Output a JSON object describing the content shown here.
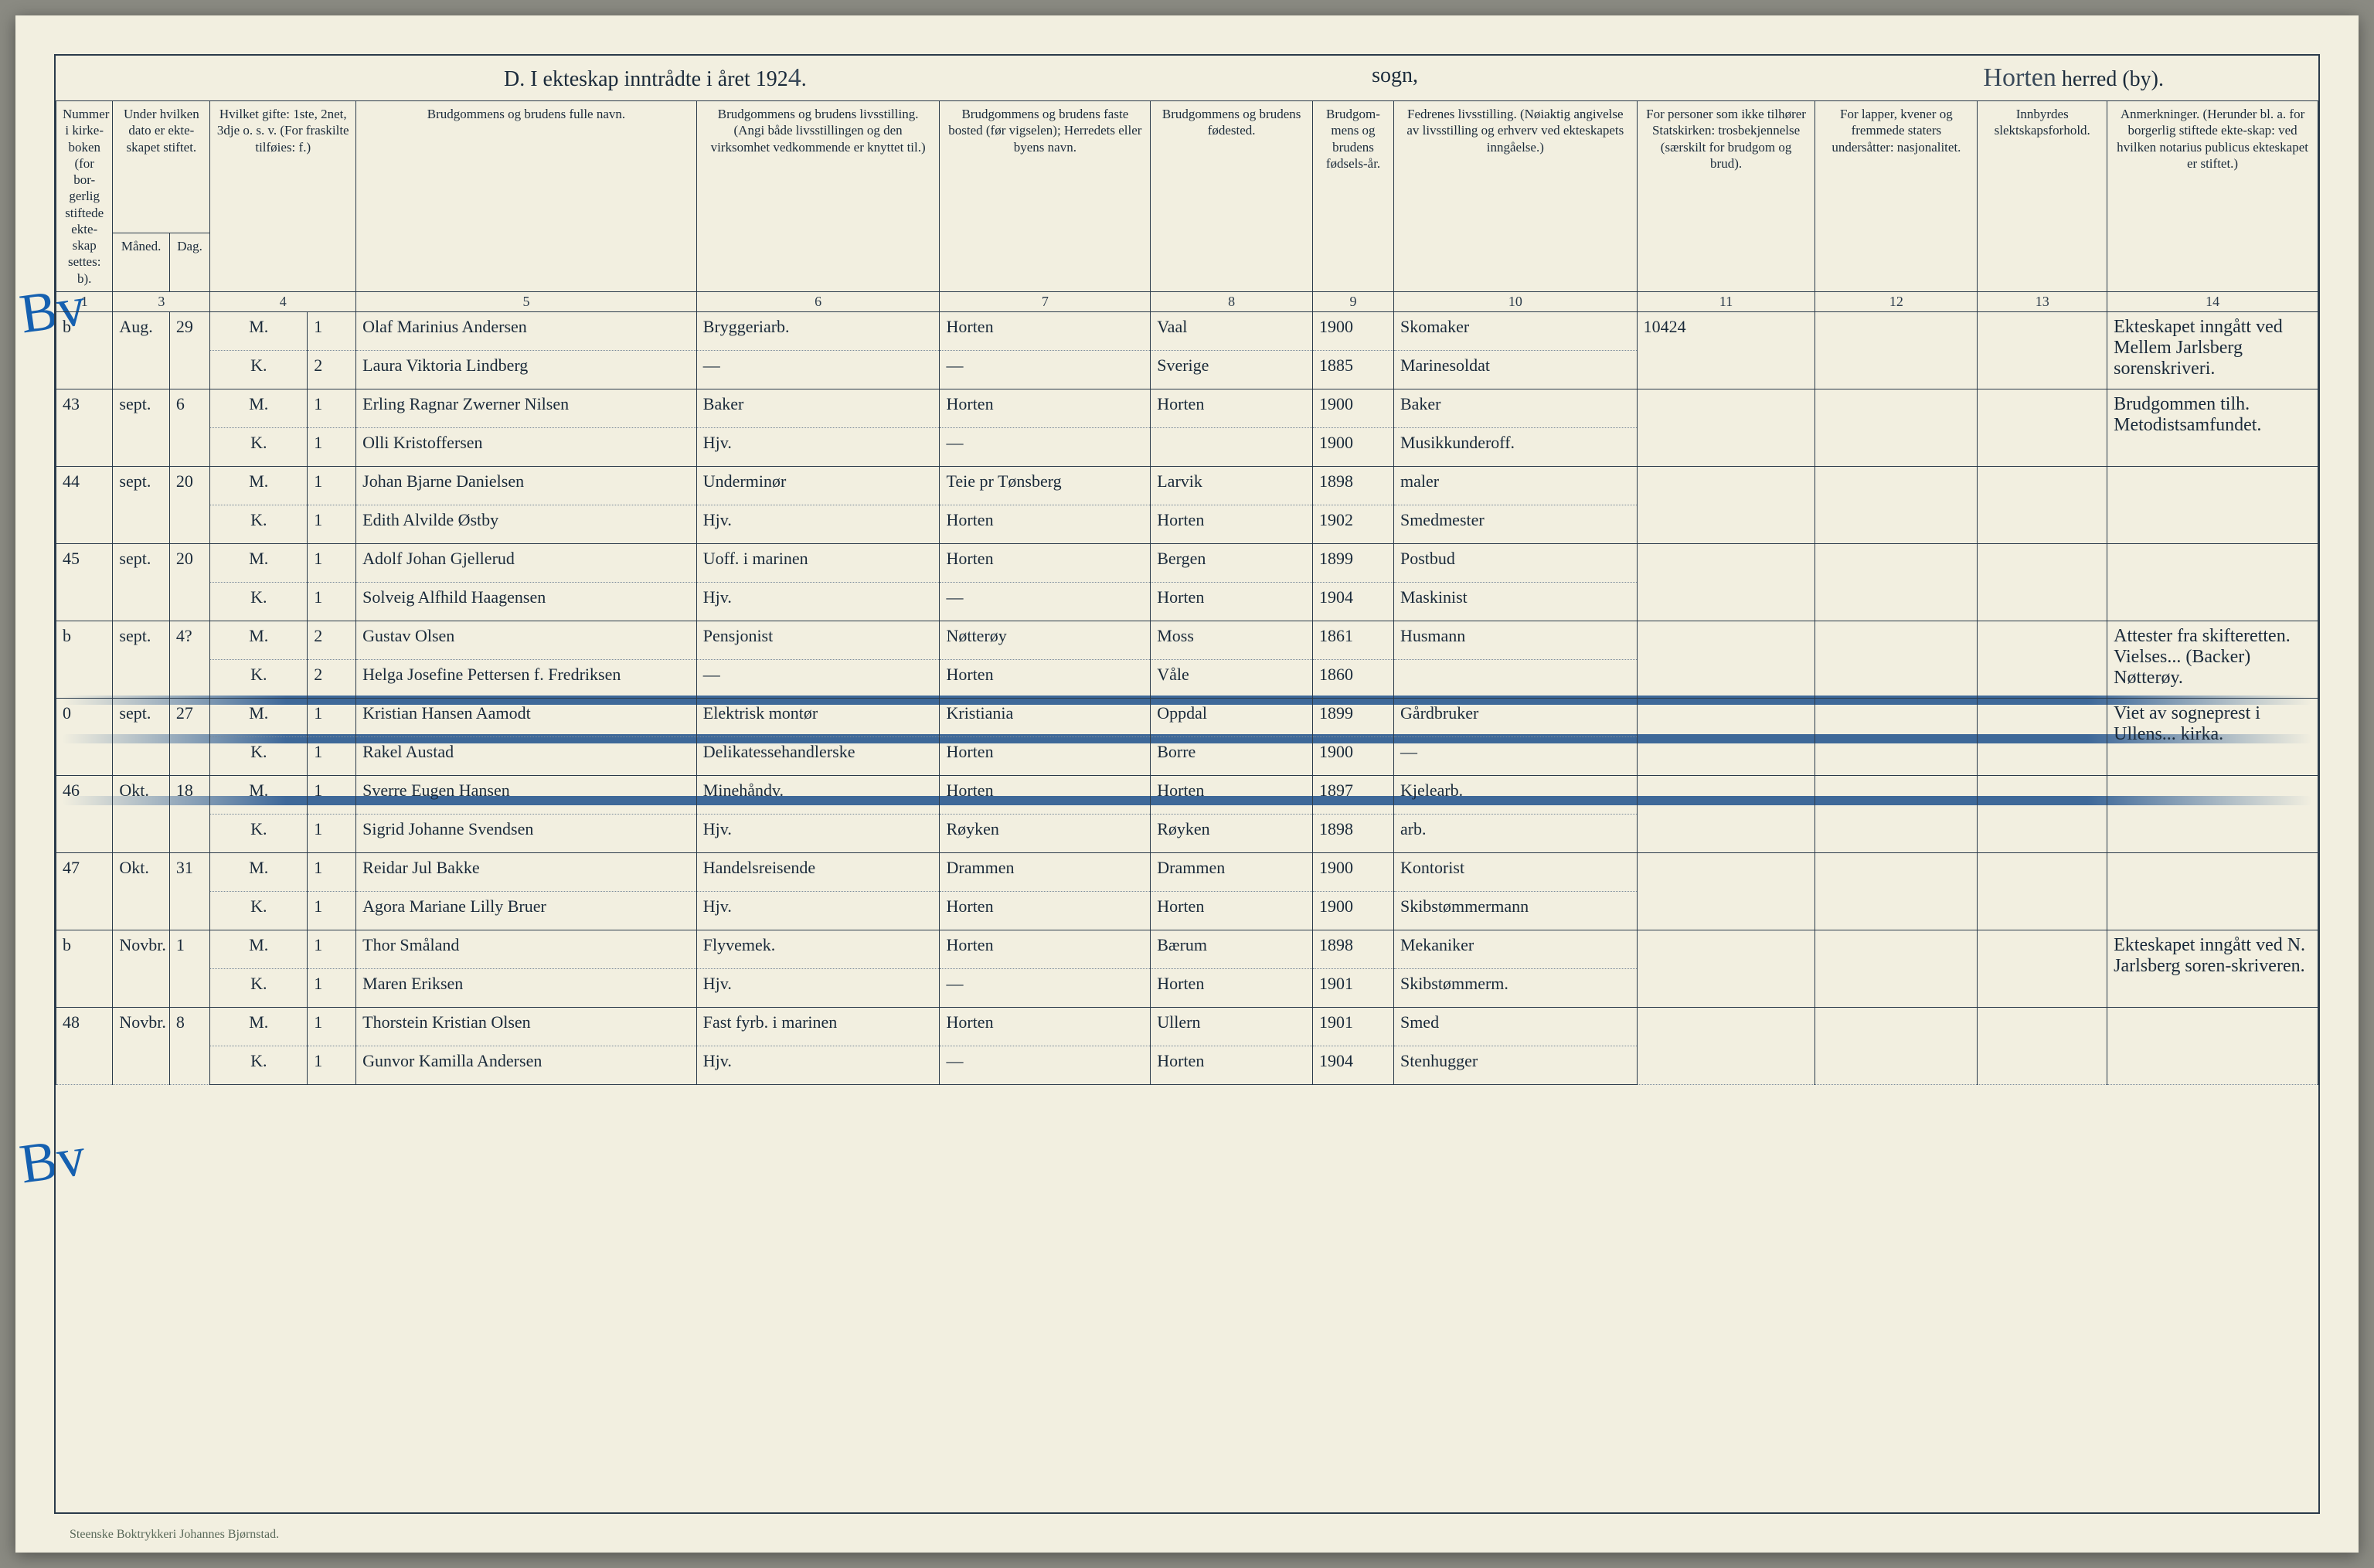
{
  "title": {
    "left_print": "D.  I ekteskap inntrådte i året 192",
    "year_hand": "4",
    "mid_print": "sogn,",
    "right_hand": "Horten",
    "right_print": "herred (by)."
  },
  "headers": {
    "c1": "Nummer i kirke-boken (for bor-gerlig stiftede ekte-skap settes: b).",
    "c2": "Under hvilken dato er ekte-skapet stiftet.",
    "c2a": "Måned.",
    "c2b": "Dag.",
    "c3": "Hvilket gifte: 1ste, 2net, 3dje o. s. v. (For fraskilte tilføies: f.)",
    "c4": "Brudgommens og brudens fulle navn.",
    "c5": "Brudgommens og brudens livsstilling. (Angi både livsstillingen og den virksomhet vedkommende er knyttet til.)",
    "c6": "Brudgommens og brudens faste bosted (før vigselen); Herredets eller byens navn.",
    "c7": "Brudgommens og brudens fødested.",
    "c8": "Brudgom-mens og brudens fødsels-år.",
    "c9": "Fedrenes livsstilling. (Nøiaktig angivelse av livsstilling og erhverv ved ekteskapets inngåelse.)",
    "c10": "For personer som ikke tilhører Statskirken: trosbekjennelse (særskilt for brudgom og brud).",
    "c11": "For lapper, kvener og fremmede staters undersåtter: nasjonalitet.",
    "c12": "Innbyrdes slektskapsforhold.",
    "c13": "Anmerkninger. (Herunder bl. a. for borgerlig stiftede ekte-skap: ved hvilken notarius publicus ekteskapet er stiftet.)"
  },
  "colnums": [
    "1",
    "",
    "3",
    "4",
    "",
    "5",
    "6",
    "7",
    "8",
    "9",
    "10",
    "11",
    "12",
    "13",
    "14"
  ],
  "mk": {
    "M": "M.",
    "K": "K."
  },
  "rows": [
    {
      "num": "b",
      "mon": "Aug.",
      "day": "29",
      "mg": "1",
      "kg": "2",
      "g_name": "Olaf Marinius Andersen",
      "g_occ": "Bryggeriarb.",
      "g_res": "Horten",
      "g_birth": "Vaal",
      "g_year": "1900",
      "g_fa": "Skomaker",
      "c11": "10424",
      "note": "Ekteskapet inngått ved Mellem Jarlsberg sorenskriveri.",
      "b_name": "Laura Viktoria Lindberg",
      "b_occ": "—",
      "b_res": "—",
      "b_birth": "Sverige",
      "b_year": "1885",
      "b_fa": "Marinesoldat"
    },
    {
      "num": "43",
      "mon": "sept.",
      "day": "6",
      "mg": "1",
      "kg": "1",
      "g_name": "Erling Ragnar Zwerner Nilsen",
      "g_occ": "Baker",
      "g_res": "Horten",
      "g_birth": "Horten",
      "g_year": "1900",
      "g_fa": "Baker",
      "note": "Brudgommen tilh. Metodistsamfundet.",
      "b_name": "Olli Kristoffersen",
      "b_occ": "Hjv.",
      "b_res": "—",
      "b_birth": "",
      "b_year": "1900",
      "b_fa": "Musikkunderoff."
    },
    {
      "num": "44",
      "mon": "sept.",
      "day": "20",
      "mg": "1",
      "kg": "1",
      "g_name": "Johan Bjarne Danielsen",
      "g_occ": "Underminør",
      "g_res": "Teie pr Tønsberg",
      "g_birth": "Larvik",
      "g_year": "1898",
      "g_fa": "maler",
      "b_name": "Edith Alvilde Østby",
      "b_occ": "Hjv.",
      "b_res": "Horten",
      "b_birth": "Horten",
      "b_year": "1902",
      "b_fa": "Smedmester"
    },
    {
      "num": "45",
      "mon": "sept.",
      "day": "20",
      "mg": "1",
      "kg": "1",
      "g_name": "Adolf Johan Gjellerud",
      "g_occ": "Uoff. i marinen",
      "g_res": "Horten",
      "g_birth": "Bergen",
      "g_year": "1899",
      "g_fa": "Postbud",
      "b_name": "Solveig Alfhild Haagensen",
      "b_occ": "Hjv.",
      "b_res": "—",
      "b_birth": "Horten",
      "b_year": "1904",
      "b_fa": "Maskinist"
    },
    {
      "num": "b",
      "mon": "sept.",
      "day": "4?",
      "mg": "2",
      "kg": "2",
      "g_name": "Gustav Olsen",
      "g_occ": "Pensjonist",
      "g_res": "Nøtterøy",
      "g_birth": "Moss",
      "g_year": "1861",
      "g_fa": "Husmann",
      "note": "Attester fra skifteretten. Vielses... (Backer) Nøtterøy.",
      "b_name": "Helga Josefine Pettersen f. Fredriksen",
      "b_occ": "—",
      "b_res": "Horten",
      "b_birth": "Våle",
      "b_year": "1860",
      "b_fa": ""
    },
    {
      "num": "0",
      "mon": "sept.",
      "day": "27",
      "mg": "1",
      "kg": "1",
      "g_name": "Kristian Hansen Aamodt",
      "g_occ": "Elektrisk montør",
      "g_res": "Kristiania",
      "g_birth": "Oppdal",
      "g_year": "1899",
      "g_fa": "Gårdbruker",
      "note": "Viet av sogneprest i Ullens... kirka.",
      "b_name": "Rakel Austad",
      "b_occ": "Delikatessehandlerske",
      "b_res": "Horten",
      "b_birth": "Borre",
      "b_year": "1900",
      "b_fa": "—"
    },
    {
      "num": "46",
      "mon": "Okt.",
      "day": "18",
      "mg": "1",
      "kg": "1",
      "g_name": "Sverre Eugen Hansen",
      "g_occ": "Minehåndv.",
      "g_res": "Horten",
      "g_birth": "Horten",
      "g_year": "1897",
      "g_fa": "Kjelearb.",
      "b_name": "Sigrid Johanne Svendsen",
      "b_occ": "Hjv.",
      "b_res": "Røyken",
      "b_birth": "Røyken",
      "b_year": "1898",
      "b_fa": "arb."
    },
    {
      "num": "47",
      "mon": "Okt.",
      "day": "31",
      "mg": "1",
      "kg": "1",
      "g_name": "Reidar Jul Bakke",
      "g_occ": "Handelsreisende",
      "g_res": "Drammen",
      "g_birth": "Drammen",
      "g_year": "1900",
      "g_fa": "Kontorist",
      "b_name": "Agora Mariane Lilly Bruer",
      "b_occ": "Hjv.",
      "b_res": "Horten",
      "b_birth": "Horten",
      "b_year": "1900",
      "b_fa": "Skibstømmermann"
    },
    {
      "num": "b",
      "mon": "Novbr.",
      "day": "1",
      "mg": "1",
      "kg": "1",
      "g_name": "Thor Småland",
      "g_occ": "Flyvemek.",
      "g_res": "Horten",
      "g_birth": "Bærum",
      "g_year": "1898",
      "g_fa": "Mekaniker",
      "note": "Ekteskapet inngått ved N. Jarlsberg soren-skriveren.",
      "b_name": "Maren Eriksen",
      "b_occ": "Hjv.",
      "b_res": "—",
      "b_birth": "Horten",
      "b_year": "1901",
      "b_fa": "Skibstømmerm."
    },
    {
      "num": "48",
      "mon": "Novbr.",
      "day": "8",
      "mg": "1",
      "kg": "1",
      "g_name": "Thorstein Kristian Olsen",
      "g_occ": "Fast fyrb. i marinen",
      "g_res": "Horten",
      "g_birth": "Ullern",
      "g_year": "1901",
      "g_fa": "Smed",
      "b_name": "Gunvor Kamilla Andersen",
      "b_occ": "Hjv.",
      "b_res": "—",
      "b_birth": "Horten",
      "b_year": "1904",
      "b_fa": "Stenhugger"
    }
  ],
  "footer": "Steenske Boktrykkeri Johannes Bjørnstad."
}
